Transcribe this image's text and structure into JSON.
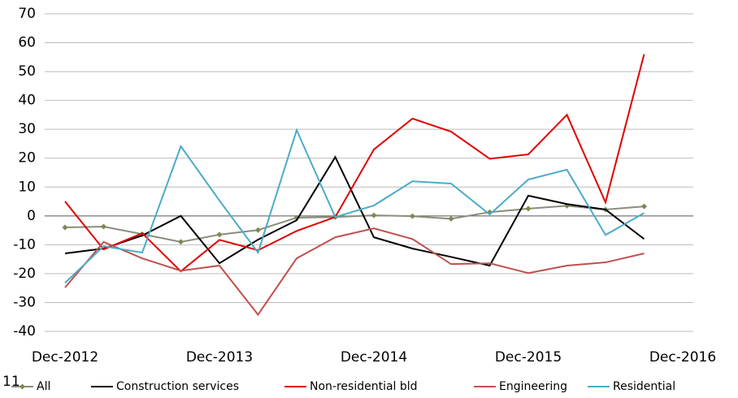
{
  "chart_data": {
    "type": "line",
    "note": "11",
    "categories": [
      "Dec-2012",
      null,
      null,
      null,
      "Dec-2013",
      null,
      null,
      null,
      "Dec-2014",
      null,
      null,
      null,
      "Dec-2015",
      null,
      null,
      null,
      "Dec-2016"
    ],
    "ylim": [
      -40,
      70
    ],
    "yticks": [
      -40,
      -30,
      -20,
      -10,
      0,
      10,
      20,
      30,
      40,
      50,
      60,
      70
    ],
    "grid": true,
    "legend": "bottom",
    "series": [
      {
        "name": "All",
        "color": "#8c8c7c",
        "marker": "diamond",
        "marker_color": "#7a8a50",
        "values": [
          -4,
          -3.7,
          -6.3,
          -9,
          -6.5,
          -4.9,
          -0.6,
          -0.4,
          0.2,
          -0.1,
          -1,
          1.3,
          2.5,
          3.5,
          2.2,
          3.3,
          null
        ]
      },
      {
        "name": "Construction services",
        "color": "#000000",
        "values": [
          -13,
          -11.3,
          -6.8,
          0,
          -16.4,
          -8.2,
          -1.5,
          20.4,
          -7.4,
          -11.3,
          -14.2,
          -17.2,
          7,
          4.1,
          2.2,
          -8,
          null
        ]
      },
      {
        "name": "Non-residential bld",
        "color": "#e00000",
        "values": [
          5,
          -11.6,
          -6,
          -19.2,
          -8.3,
          -11.9,
          -5.2,
          -0.4,
          23,
          33.7,
          29.2,
          19.8,
          21.3,
          35,
          4.7,
          56,
          null
        ]
      },
      {
        "name": "Engineering",
        "color": "#c0504d",
        "values": [
          -24.8,
          -9,
          -14.7,
          -19,
          -17.2,
          -34.2,
          -14.7,
          -7.4,
          -4.3,
          -8,
          -16.7,
          -16.4,
          -19.8,
          -17.2,
          -16.1,
          -13,
          null
        ]
      },
      {
        "name": "Residential",
        "color": "#4bacc6",
        "values": [
          -23.2,
          -10.5,
          -12.7,
          24.1,
          5.3,
          -12.7,
          29.7,
          -0.4,
          3.6,
          12,
          11.2,
          0.5,
          12.6,
          16,
          -6.6,
          1,
          null
        ]
      }
    ]
  }
}
